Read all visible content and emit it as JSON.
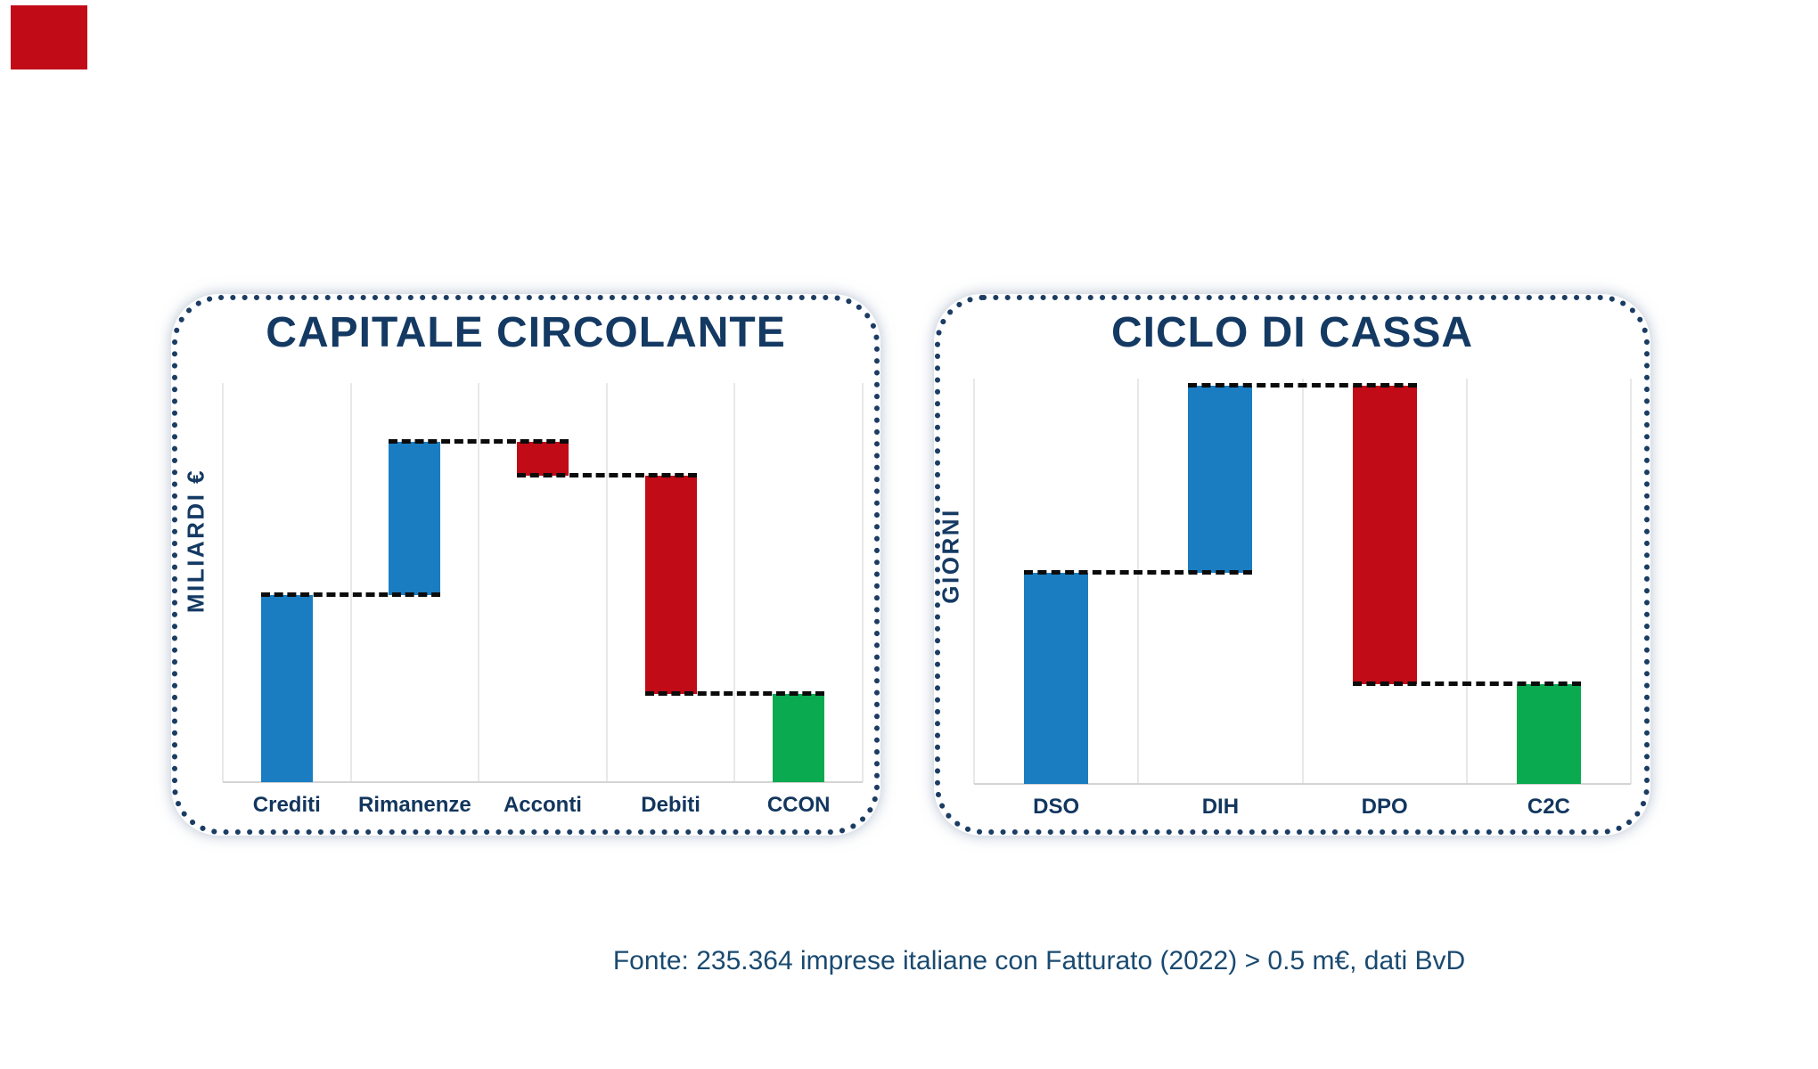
{
  "page": {
    "source_note": "Fonte: 235.364 imprese italiane con Fatturato (2022) > 0.5 m€, dati BvD"
  },
  "colors": {
    "accent_red": "#C10B17",
    "navy_text": "#143A63",
    "bar_blue": "#1A7DC2",
    "bar_red": "#C10B17",
    "bar_green": "#0AAA50",
    "dot_border": "#1B3C63",
    "gridline": "#E8E8E8",
    "baseline": "#D4D4D4",
    "connector": "#0B0B0B",
    "source_text": "#1A4A70"
  },
  "chart_data": [
    {
      "type": "bar",
      "subtype": "waterfall",
      "title": "CAPITALE CIRCOLANTE",
      "xlabel": "",
      "ylabel": "MILIARDI €",
      "categories": [
        "Crediti",
        "Rimanenze",
        "Acconti",
        "Debiti",
        "CCON"
      ],
      "values": [
        55,
        45,
        -10,
        -64,
        26
      ],
      "bar_kinds": [
        "increase",
        "increase",
        "decrease",
        "decrease",
        "total"
      ],
      "bar_colors": [
        "#1A7DC2",
        "#1A7DC2",
        "#C10B17",
        "#C10B17",
        "#0AAA50"
      ],
      "cumulative_levels": [
        55,
        100,
        90,
        26,
        26
      ],
      "ylim": [
        0,
        118
      ],
      "value_scale_note": "no numeric axis shown; values estimated as relative units, peak = 100",
      "grid": "vertical column separators only",
      "legend": "none",
      "connector_style": "black dashed step lines between consecutive bars"
    },
    {
      "type": "bar",
      "subtype": "waterfall",
      "title": "CICLO DI CASSA",
      "xlabel": "",
      "ylabel": "GIORNI",
      "categories": [
        "DSO",
        "DIH",
        "DPO",
        "C2C"
      ],
      "values": [
        53,
        47,
        -75,
        25
      ],
      "bar_kinds": [
        "increase",
        "increase",
        "decrease",
        "total"
      ],
      "bar_colors": [
        "#1A7DC2",
        "#1A7DC2",
        "#C10B17",
        "#0AAA50"
      ],
      "cumulative_levels": [
        53,
        100,
        25,
        25
      ],
      "ylim": [
        0,
        102
      ],
      "value_scale_note": "no numeric axis shown; values estimated as relative units, peak = 100",
      "grid": "vertical column separators only",
      "legend": "none",
      "connector_style": "black dashed step lines between consecutive bars"
    }
  ]
}
